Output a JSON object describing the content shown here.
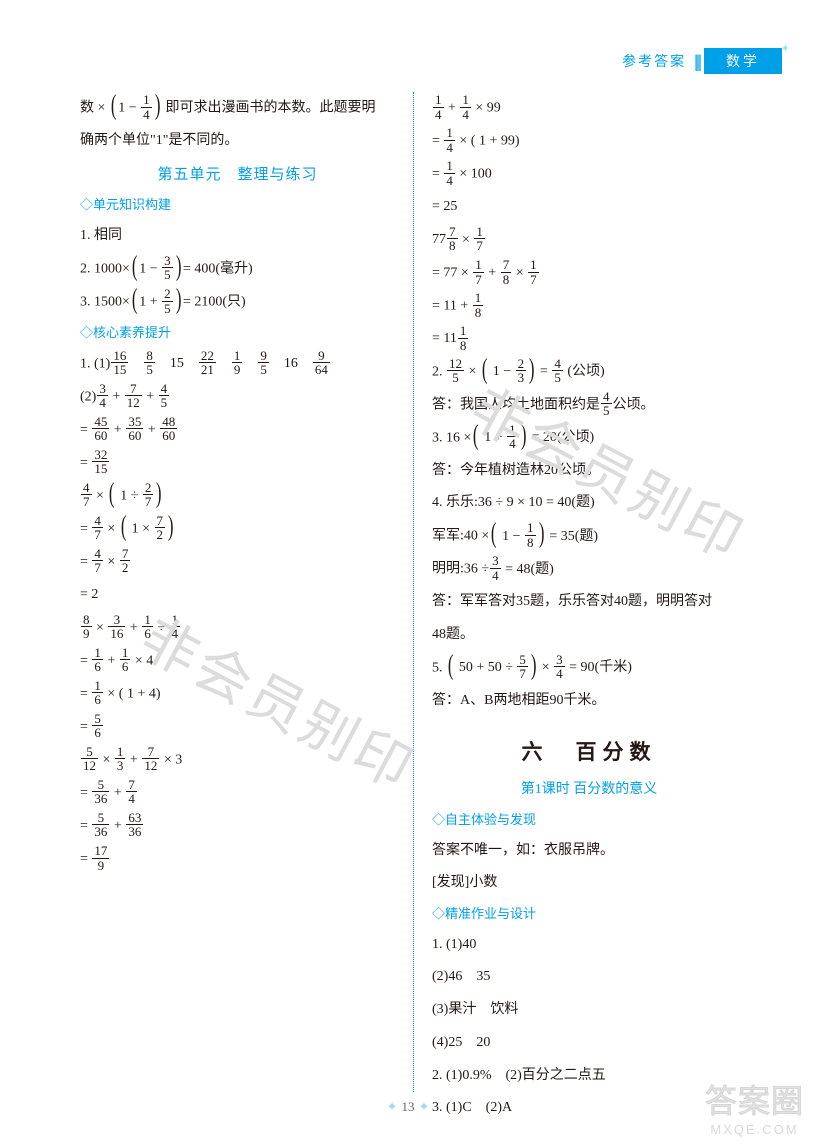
{
  "header": {
    "ref": "参考答案",
    "subject": "数学"
  },
  "watermark": "非会员别印",
  "pagenum": "13",
  "footer": {
    "big": "答案圈",
    "small": "MXQE.COM"
  },
  "left": {
    "intro1_a": "数 ×",
    "intro1_frac": {
      "n": "1",
      "d": "4"
    },
    "intro1_b": "即可求出漫画书的本数。此题要明",
    "intro2": "确两个单位\"1\"是不同的。",
    "unit5_title": "第五单元　整理与练习",
    "sec1_title": "◇单元知识构建",
    "l1": "1. 相同",
    "l2_pre": "2. 1000×",
    "l2_inner_n": "3",
    "l2_inner_d": "5",
    "l2_post": "= 400(毫升)",
    "l3_pre": "3. 1500×",
    "l3_inner_n": "2",
    "l3_inner_d": "5",
    "l3_post": "= 2100(只)",
    "sec2_title": "◇核心素养提升",
    "p1_label": "1. (1)",
    "p1_fracs": [
      {
        "n": "16",
        "d": "15"
      },
      {
        "n": "8",
        "d": "5"
      },
      {
        "t": "15"
      },
      {
        "n": "22",
        "d": "21"
      },
      {
        "n": "1",
        "d": "9"
      },
      {
        "n": "9",
        "d": "5"
      },
      {
        "t": "16"
      },
      {
        "n": "9",
        "d": "64"
      }
    ],
    "p1_2_label": "(2)",
    "p1_2_expr": [
      {
        "n": "3",
        "d": "4"
      },
      "+",
      {
        "n": "7",
        "d": "12"
      },
      "+",
      {
        "n": "4",
        "d": "5"
      }
    ],
    "p1_2_s1": [
      "= ",
      {
        "n": "45",
        "d": "60"
      },
      "+",
      {
        "n": "35",
        "d": "60"
      },
      "+",
      {
        "n": "48",
        "d": "60"
      }
    ],
    "p1_2_s2": [
      "= ",
      {
        "n": "32",
        "d": "15"
      }
    ],
    "p1_3_expr": [
      {
        "n": "4",
        "d": "7"
      },
      "×",
      "(",
      "1 ÷",
      {
        "n": "2",
        "d": "7"
      },
      ")"
    ],
    "p1_3_s1": [
      "= ",
      {
        "n": "4",
        "d": "7"
      },
      "×",
      "(",
      "1 ×",
      {
        "n": "7",
        "d": "2"
      },
      ")"
    ],
    "p1_3_s2": [
      "= ",
      {
        "n": "4",
        "d": "7"
      },
      "×",
      {
        "n": "7",
        "d": "2"
      }
    ],
    "p1_3_s3": "= 2",
    "p1_4_expr": [
      {
        "n": "8",
        "d": "9"
      },
      "×",
      {
        "n": "3",
        "d": "16"
      },
      "+",
      {
        "n": "1",
        "d": "6"
      },
      "÷",
      {
        "n": "1",
        "d": "4"
      }
    ],
    "p1_4_s1": [
      "= ",
      {
        "n": "1",
        "d": "6"
      },
      "+",
      {
        "n": "1",
        "d": "6"
      },
      "× 4"
    ],
    "p1_4_s2": [
      "= ",
      {
        "n": "1",
        "d": "6"
      },
      "× ( 1 + 4)"
    ],
    "p1_4_s3": [
      "= ",
      {
        "n": "5",
        "d": "6"
      }
    ],
    "p1_5_expr": [
      {
        "n": "5",
        "d": "12"
      },
      "×",
      {
        "n": "1",
        "d": "3"
      },
      "+",
      {
        "n": "7",
        "d": "12"
      },
      "× 3"
    ],
    "p1_5_s1": [
      "= ",
      {
        "n": "5",
        "d": "36"
      },
      "+",
      {
        "n": "7",
        "d": "4"
      }
    ],
    "p1_5_s2": [
      "= ",
      {
        "n": "5",
        "d": "36"
      },
      "+",
      {
        "n": "63",
        "d": "36"
      }
    ],
    "p1_5_s3": [
      "= ",
      {
        "n": "17",
        "d": "9"
      }
    ]
  },
  "right": {
    "r1_expr": [
      {
        "n": "1",
        "d": "4"
      },
      "+",
      {
        "n": "1",
        "d": "4"
      },
      "× 99"
    ],
    "r1_s1": [
      "= ",
      {
        "n": "1",
        "d": "4"
      },
      "× ( 1 + 99)"
    ],
    "r1_s2": [
      "= ",
      {
        "n": "1",
        "d": "4"
      },
      "× 100"
    ],
    "r1_s3": "= 25",
    "r2_expr_whole": "77",
    "r2_expr": [
      {
        "n": "7",
        "d": "8"
      },
      "×",
      {
        "n": "1",
        "d": "7"
      }
    ],
    "r2_s1": [
      "= 77 ×",
      {
        "n": "1",
        "d": "7"
      },
      "+",
      {
        "n": "7",
        "d": "8"
      },
      "×",
      {
        "n": "1",
        "d": "7"
      }
    ],
    "r2_s2": [
      "= 11 +",
      {
        "n": "1",
        "d": "8"
      }
    ],
    "r2_s3_whole": "= 11",
    "r2_s3_frac": {
      "n": "1",
      "d": "8"
    },
    "q2_pre": "2. ",
    "q2_expr": [
      {
        "n": "12",
        "d": "5"
      },
      "×",
      "(",
      "1 −",
      {
        "n": "2",
        "d": "3"
      },
      ")",
      "=",
      {
        "n": "4",
        "d": "5"
      },
      "(公顷)"
    ],
    "q2_ans_a": "答：我国人均土地面积约是",
    "q2_ans_frac": {
      "n": "4",
      "d": "5"
    },
    "q2_ans_b": "公顷。",
    "q3_pre": "3. 16 ×",
    "q3_expr": [
      "(",
      "1 +",
      {
        "n": "1",
        "d": "4"
      },
      ")",
      "= 20(公顷)"
    ],
    "q3_ans": "答：今年植树造林20公顷。",
    "q4_a": "4. 乐乐:36 ÷ 9 × 10 = 40(题)",
    "q4_b_pre": "军军:40 ×",
    "q4_b_expr": [
      "(",
      "1 −",
      {
        "n": "1",
        "d": "8"
      },
      ")",
      "= 35(题)"
    ],
    "q4_c_pre": "明明:36 ÷",
    "q4_c_expr": [
      {
        "n": "3",
        "d": "4"
      },
      "= 48(题)"
    ],
    "q4_ans1": "答：军军答对35题，乐乐答对40题，明明答对",
    "q4_ans2": "48题。",
    "q5_pre": "5. ",
    "q5_expr": [
      "(",
      "50 + 50 ÷",
      {
        "n": "5",
        "d": "7"
      },
      ")",
      "×",
      {
        "n": "3",
        "d": "4"
      },
      "= 90(千米)"
    ],
    "q5_ans": "答：A、B两地相距90千米。",
    "ch6_title": "六　百分数",
    "ch6_lesson": "第1课时 百分数的意义",
    "ch6_sec1": "◇自主体验与发现",
    "ch6_l1": "答案不唯一，如：衣服吊牌。",
    "ch6_l2": "[发现]小数",
    "ch6_sec2": "◇精准作业与设计",
    "ch6_q1": "1. (1)40",
    "ch6_q1b": "(2)46　35",
    "ch6_q1c": "(3)果汁　饮料",
    "ch6_q1d": "(4)25　20",
    "ch6_q2": "2. (1)0.9%　(2)百分之二点五",
    "ch6_q3": "3. (1)C　(2)A"
  }
}
